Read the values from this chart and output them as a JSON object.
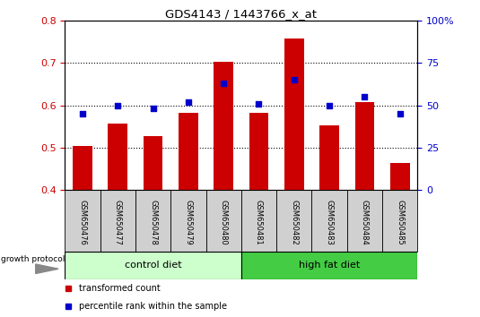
{
  "title": "GDS4143 / 1443766_x_at",
  "samples": [
    "GSM650476",
    "GSM650477",
    "GSM650478",
    "GSM650479",
    "GSM650480",
    "GSM650481",
    "GSM650482",
    "GSM650483",
    "GSM650484",
    "GSM650485"
  ],
  "transformed_count": [
    0.505,
    0.558,
    0.527,
    0.583,
    0.703,
    0.582,
    0.758,
    0.552,
    0.607,
    0.465
  ],
  "percentile_rank": [
    45,
    50,
    48,
    52,
    63,
    51,
    65,
    50,
    55,
    45
  ],
  "bar_color": "#cc0000",
  "square_color": "#0000cc",
  "ylim_left": [
    0.4,
    0.8
  ],
  "ylim_right": [
    0,
    100
  ],
  "yticks_left": [
    0.4,
    0.5,
    0.6,
    0.7,
    0.8
  ],
  "yticks_right": [
    0,
    25,
    50,
    75,
    100
  ],
  "ytick_labels_right": [
    "0",
    "25",
    "50",
    "75",
    "100%"
  ],
  "grid_vals": [
    0.5,
    0.6,
    0.7
  ],
  "control_diet_label": "control diet",
  "high_fat_label": "high fat diet",
  "growth_protocol_label": "growth protocol",
  "legend_red_label": "transformed count",
  "legend_blue_label": "percentile rank within the sample",
  "control_color": "#ccffcc",
  "highfat_color": "#44cc44",
  "sample_box_color": "#d0d0d0",
  "bar_width": 0.55
}
